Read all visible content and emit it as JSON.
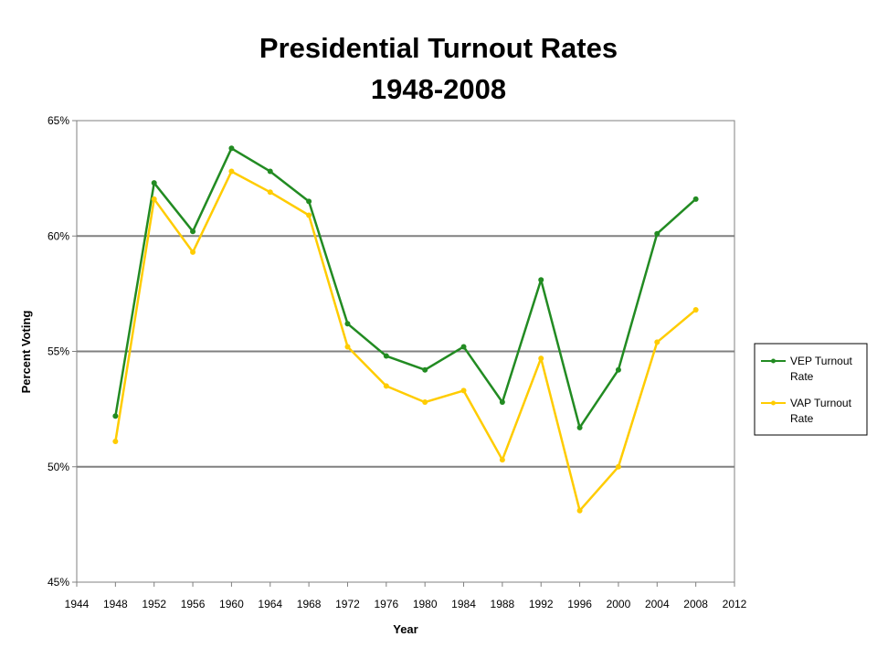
{
  "chart_data": {
    "type": "line",
    "title": [
      "Presidential Turnout Rates",
      "1948-2008"
    ],
    "xlabel": "Year",
    "ylabel": "Percent Voting",
    "xlim": [
      1944,
      2012
    ],
    "xticks": [
      1944,
      1948,
      1952,
      1956,
      1960,
      1964,
      1968,
      1972,
      1976,
      1980,
      1984,
      1988,
      1992,
      1996,
      2000,
      2004,
      2008,
      2012
    ],
    "ylim": [
      45,
      65
    ],
    "yticks": [
      45,
      50,
      55,
      60,
      65
    ],
    "ytick_labels": [
      "45%",
      "50%",
      "55%",
      "60%",
      "65%"
    ],
    "grid": "horizontal",
    "legend_position": "right",
    "x": [
      1948,
      1952,
      1956,
      1960,
      1964,
      1968,
      1972,
      1976,
      1980,
      1984,
      1988,
      1992,
      1996,
      2000,
      2004,
      2008
    ],
    "series": [
      {
        "name": "VEP Turnout Rate",
        "legend_lines": [
          "VEP Turnout",
          "Rate"
        ],
        "color": "#228B22",
        "values": [
          52.2,
          62.3,
          60.2,
          63.8,
          62.8,
          61.5,
          56.2,
          54.8,
          54.2,
          55.2,
          52.8,
          58.1,
          51.7,
          54.2,
          60.1,
          61.6
        ]
      },
      {
        "name": "VAP Turnout Rate",
        "legend_lines": [
          "VAP Turnout",
          "Rate"
        ],
        "color": "#FFCC00",
        "values": [
          51.1,
          61.6,
          59.3,
          62.8,
          61.9,
          60.9,
          55.2,
          53.5,
          52.8,
          53.3,
          50.3,
          54.7,
          48.1,
          50.0,
          55.4,
          56.8
        ]
      }
    ]
  }
}
